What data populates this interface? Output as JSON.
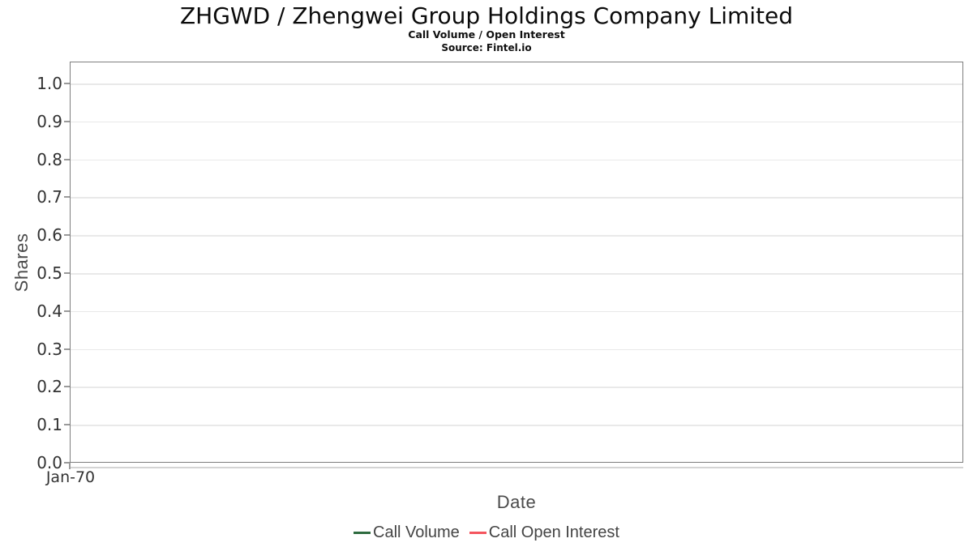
{
  "chart_data": {
    "type": "line",
    "title": "ZHGWD / Zhengwei Group Holdings Company Limited",
    "subtitle": "Call Volume / Open Interest",
    "source": "Source: Fintel.io",
    "x_axis": {
      "label": "Date",
      "ticks": [
        "Jan-70"
      ]
    },
    "y_axis": {
      "label": "Shares",
      "ticks": [
        "1.0",
        "0.9",
        "0.8",
        "0.7",
        "0.6",
        "0.5",
        "0.4",
        "0.3",
        "0.2",
        "0.1",
        "0.0"
      ],
      "range": [
        0.0,
        1.05
      ]
    },
    "grid": "horizontal",
    "legend_position": "bottom",
    "series": [
      {
        "name": "Call Volume",
        "color": "#2e6b3f",
        "x": [],
        "values": []
      },
      {
        "name": "Call Open Interest",
        "color": "#f4555e",
        "x": [],
        "values": []
      }
    ]
  },
  "style": {
    "plot_border": "#7e7e7e",
    "gridline": "#e9e9e9",
    "tick": "#9a9a9a",
    "axis_line": "#d4d4d4",
    "tick_label_color": "#333333",
    "axis_label_color": "#4a4a4a",
    "legend_text_color": "#444444",
    "background": "#ffffff"
  }
}
